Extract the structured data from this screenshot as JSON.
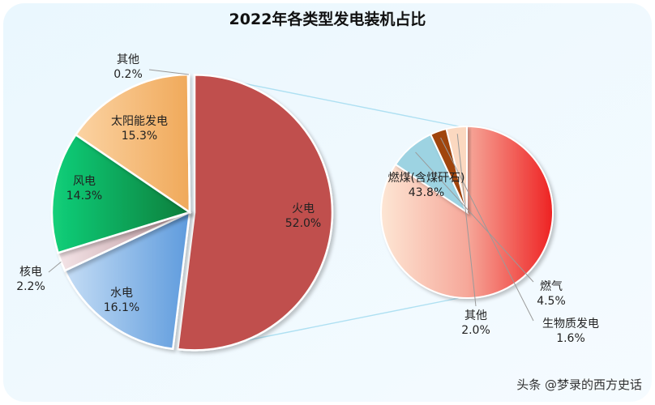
{
  "chart_data": [
    {
      "type": "pie",
      "title": "2022年各类型发电装机占比",
      "slices": [
        {
          "label": "火电",
          "value": 52.0,
          "value_text": "52.0%",
          "color": "#C0504D"
        },
        {
          "label": "水电",
          "value": 16.1,
          "value_text": "16.1%",
          "color": "#7FAEE3"
        },
        {
          "label": "核电",
          "value": 2.2,
          "value_text": "2.2%",
          "color": "#E9C9CF"
        },
        {
          "label": "风电",
          "value": 14.3,
          "value_text": "14.3%",
          "color": "#10B060"
        },
        {
          "label": "太阳能发电",
          "value": 15.3,
          "value_text": "15.3%",
          "color": "#F2B877"
        },
        {
          "label": "其他",
          "value": 0.2,
          "value_text": "0.2%",
          "color": "#D9D9D9"
        }
      ]
    },
    {
      "type": "pie",
      "title": "",
      "slices": [
        {
          "label": "燃煤(含煤矸石)",
          "value": 43.8,
          "value_text": "43.8%",
          "color": "#F25A4F"
        },
        {
          "label": "燃气",
          "value": 4.5,
          "value_text": "4.5%",
          "color": "#9DD3E2"
        },
        {
          "label": "生物质发电",
          "value": 1.6,
          "value_text": "1.6%",
          "color": "#A0450F"
        },
        {
          "label": "其他",
          "value": 2.0,
          "value_text": "2.0%",
          "color": "#FBD8C0"
        }
      ]
    }
  ],
  "watermark": "头条 @梦录的西方史话"
}
